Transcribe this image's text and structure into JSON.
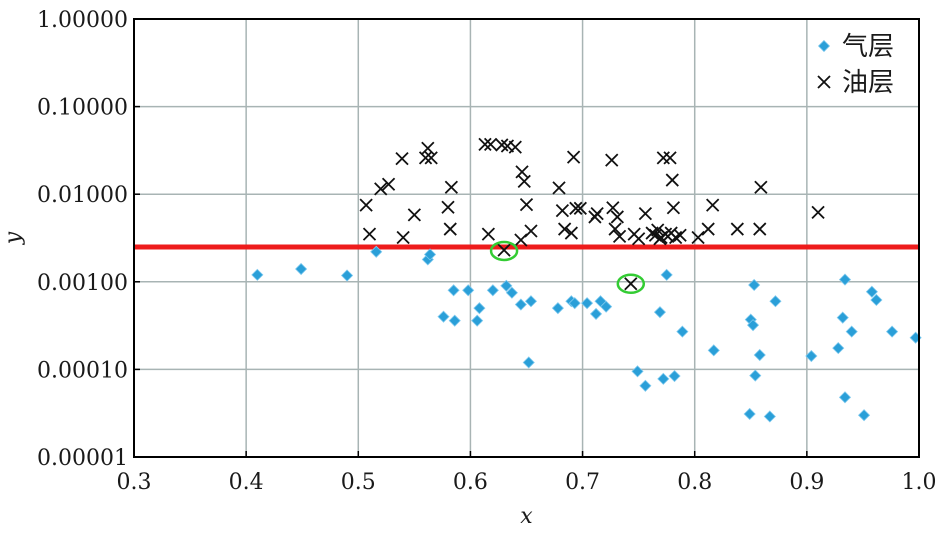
{
  "chart_data": {
    "type": "scatter",
    "xlabel": "x",
    "ylabel": "y",
    "xlim": [
      0.3,
      1.0
    ],
    "ylim": [
      1e-05,
      1.0
    ],
    "yscale": "log",
    "grid": true,
    "legend_position": "top-right",
    "x_ticks": [
      0.3,
      0.4,
      0.5,
      0.6,
      0.7,
      0.8,
      0.9,
      1.0
    ],
    "x_tick_labels": [
      "0.3",
      "0.4",
      "0.5",
      "0.6",
      "0.7",
      "0.8",
      "0.9",
      "1.0"
    ],
    "y_ticks": [
      1e-05,
      0.0001,
      0.001,
      0.01,
      0.1,
      1.0
    ],
    "y_tick_labels": [
      "0.00001",
      "0.00010",
      "0.00100",
      "0.01000",
      "0.10000",
      "1.00000"
    ],
    "threshold_line": {
      "y": 0.0025,
      "color": "#ee1c1c"
    },
    "highlighted_points": [
      {
        "x": 0.63,
        "y": 0.00225,
        "color": "#33cc33"
      },
      {
        "x": 0.743,
        "y": 0.00095,
        "color": "#33cc33"
      }
    ],
    "series": [
      {
        "name": "气层",
        "marker": "diamond",
        "color": "#2a9fd8",
        "points": [
          [
            0.41,
            0.0012
          ],
          [
            0.449,
            0.0014
          ],
          [
            0.49,
            0.00118
          ],
          [
            0.516,
            0.0022
          ],
          [
            0.562,
            0.0018
          ],
          [
            0.564,
            0.00205
          ],
          [
            0.576,
            0.0004
          ],
          [
            0.585,
            0.0008
          ],
          [
            0.586,
            0.00036
          ],
          [
            0.598,
            0.0008
          ],
          [
            0.606,
            0.00036
          ],
          [
            0.608,
            0.0005
          ],
          [
            0.62,
            0.0008
          ],
          [
            0.632,
            0.0009
          ],
          [
            0.637,
            0.00075
          ],
          [
            0.645,
            0.00055
          ],
          [
            0.652,
            0.00012
          ],
          [
            0.654,
            0.0006
          ],
          [
            0.678,
            0.0005
          ],
          [
            0.69,
            0.0006
          ],
          [
            0.693,
            0.00057
          ],
          [
            0.704,
            0.00057
          ],
          [
            0.712,
            0.00043
          ],
          [
            0.716,
            0.0006
          ],
          [
            0.721,
            0.00052
          ],
          [
            0.749,
            9.5e-05
          ],
          [
            0.756,
            6.5e-05
          ],
          [
            0.769,
            0.00045
          ],
          [
            0.772,
            7.8e-05
          ],
          [
            0.775,
            0.0012
          ],
          [
            0.782,
            8.4e-05
          ],
          [
            0.789,
            0.00027
          ],
          [
            0.817,
            0.000165
          ],
          [
            0.849,
            3.1e-05
          ],
          [
            0.85,
            0.00037
          ],
          [
            0.852,
            0.00032
          ],
          [
            0.853,
            0.00092
          ],
          [
            0.854,
            8.5e-05
          ],
          [
            0.858,
            0.000146
          ],
          [
            0.867,
            2.9e-05
          ],
          [
            0.872,
            0.0006
          ],
          [
            0.904,
            0.000142
          ],
          [
            0.928,
            0.000175
          ],
          [
            0.932,
            0.00039
          ],
          [
            0.934,
            0.00106
          ],
          [
            0.934,
            4.8e-05
          ],
          [
            0.94,
            0.00027
          ],
          [
            0.951,
            3e-05
          ],
          [
            0.958,
            0.00077
          ],
          [
            0.962,
            0.00062
          ],
          [
            0.976,
            0.00027
          ],
          [
            0.997,
            0.00023
          ]
        ]
      },
      {
        "name": "油层",
        "marker": "x",
        "color": "#111111",
        "points": [
          [
            0.507,
            0.0075
          ],
          [
            0.51,
            0.0035
          ],
          [
            0.52,
            0.0115
          ],
          [
            0.527,
            0.013
          ],
          [
            0.539,
            0.0255
          ],
          [
            0.54,
            0.0032
          ],
          [
            0.55,
            0.0058
          ],
          [
            0.56,
            0.026
          ],
          [
            0.562,
            0.0335
          ],
          [
            0.565,
            0.026
          ],
          [
            0.58,
            0.0071
          ],
          [
            0.582,
            0.004
          ],
          [
            0.583,
            0.012
          ],
          [
            0.613,
            0.037
          ],
          [
            0.616,
            0.0035
          ],
          [
            0.618,
            0.037
          ],
          [
            0.628,
            0.0365
          ],
          [
            0.63,
            0.0023
          ],
          [
            0.633,
            0.0355
          ],
          [
            0.64,
            0.0345
          ],
          [
            0.645,
            0.003
          ],
          [
            0.646,
            0.018
          ],
          [
            0.648,
            0.014
          ],
          [
            0.65,
            0.0076
          ],
          [
            0.654,
            0.0038
          ],
          [
            0.679,
            0.0118
          ],
          [
            0.682,
            0.0065
          ],
          [
            0.684,
            0.004
          ],
          [
            0.69,
            0.0036
          ],
          [
            0.692,
            0.0265
          ],
          [
            0.694,
            0.0069
          ],
          [
            0.698,
            0.0069
          ],
          [
            0.711,
            0.0055
          ],
          [
            0.713,
            0.006
          ],
          [
            0.726,
            0.0245
          ],
          [
            0.727,
            0.007
          ],
          [
            0.729,
            0.004
          ],
          [
            0.731,
            0.0055
          ],
          [
            0.733,
            0.0033
          ],
          [
            0.743,
            0.00095
          ],
          [
            0.746,
            0.0035
          ],
          [
            0.75,
            0.0031
          ],
          [
            0.756,
            0.006
          ],
          [
            0.762,
            0.0036
          ],
          [
            0.765,
            0.0034
          ],
          [
            0.767,
            0.0039
          ],
          [
            0.769,
            0.0031
          ],
          [
            0.77,
            0.0032
          ],
          [
            0.772,
            0.026
          ],
          [
            0.774,
            0.0035
          ],
          [
            0.776,
            0.0033
          ],
          [
            0.778,
            0.026
          ],
          [
            0.779,
            0.0036
          ],
          [
            0.78,
            0.0145
          ],
          [
            0.781,
            0.007
          ],
          [
            0.783,
            0.0032
          ],
          [
            0.787,
            0.0034
          ],
          [
            0.803,
            0.0032
          ],
          [
            0.812,
            0.004
          ],
          [
            0.816,
            0.0075
          ],
          [
            0.838,
            0.004
          ],
          [
            0.858,
            0.004
          ],
          [
            0.859,
            0.012
          ],
          [
            0.91,
            0.0062
          ]
        ]
      }
    ]
  }
}
